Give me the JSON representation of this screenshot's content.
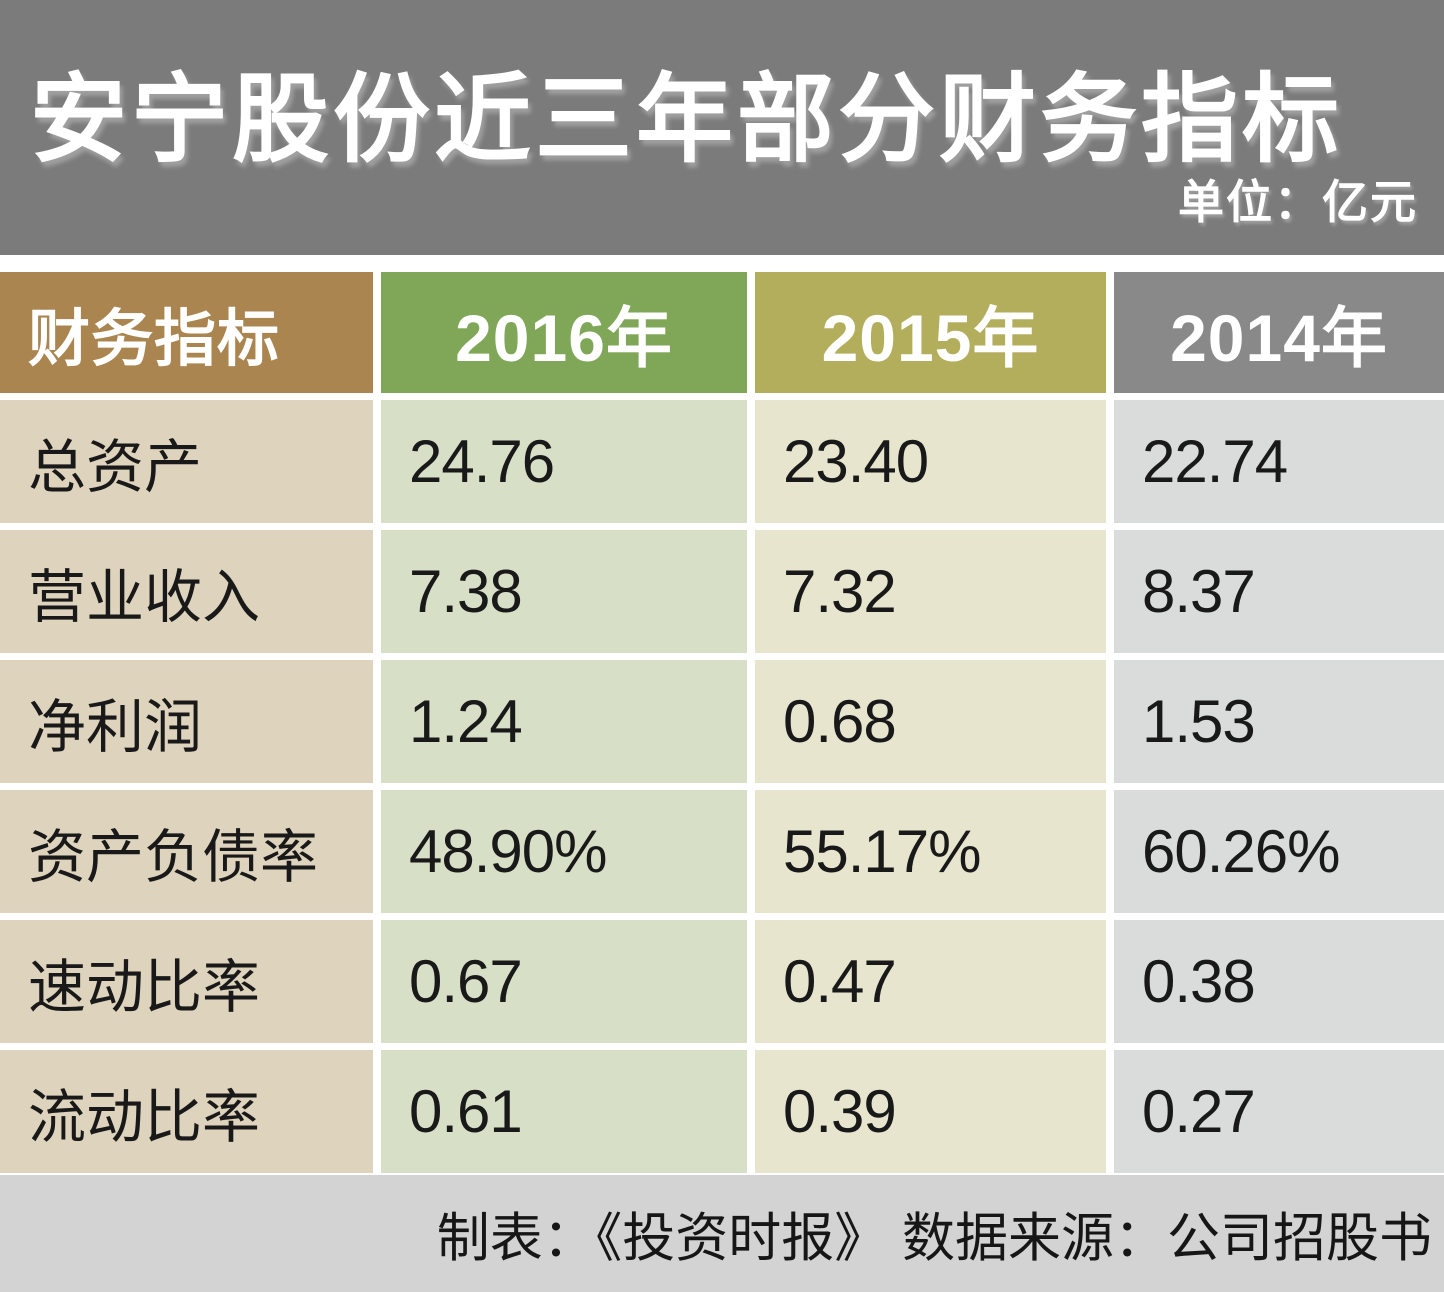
{
  "banner": {
    "title": "安宁股份近三年部分财务指标",
    "unit_label": "单位：亿元"
  },
  "table": {
    "header": [
      "财务指标",
      "2016年",
      "2015年",
      "2014年"
    ],
    "rows": [
      {
        "label": "总资产",
        "values": [
          "24.76",
          "23.40",
          "22.74"
        ]
      },
      {
        "label": "营业收入",
        "values": [
          "7.38",
          "7.32",
          "8.37"
        ]
      },
      {
        "label": "净利润",
        "values": [
          "1.24",
          "0.68",
          "1.53"
        ]
      },
      {
        "label": "资产负债率",
        "values": [
          "48.90%",
          "55.17%",
          "60.26%"
        ]
      },
      {
        "label": "速动比率",
        "values": [
          "0.67",
          "0.47",
          "0.38"
        ]
      },
      {
        "label": "流动比率",
        "values": [
          "0.61",
          "0.39",
          "0.27"
        ]
      }
    ]
  },
  "footer": {
    "credit": "制表：《投资时报》  数据来源：公司招股书"
  },
  "colors": {
    "banner_bg": "#7b7b7b",
    "header_indicator": "#aa8550",
    "header_2016": "#7fa757",
    "header_2015": "#b3ae5b",
    "header_2014": "#898989",
    "body_label": "#ded3bc",
    "body_2016": "#d7dfc6",
    "body_2015": "#e7e5ce",
    "body_2014": "#dadbdb",
    "footer_bg": "#d3d3d3",
    "text_dark": "#191919",
    "text_white": "#ffffff"
  },
  "chart_data": {
    "type": "table",
    "title": "安宁股份近三年部分财务指标",
    "unit": "亿元",
    "columns": [
      "财务指标",
      "2016年",
      "2015年",
      "2014年"
    ],
    "rows": [
      [
        "总资产",
        24.76,
        23.4,
        22.74
      ],
      [
        "营业收入",
        7.38,
        7.32,
        8.37
      ],
      [
        "净利润",
        1.24,
        0.68,
        1.53
      ],
      [
        "资产负债率",
        "48.90%",
        "55.17%",
        "60.26%"
      ],
      [
        "速动比率",
        0.67,
        0.47,
        0.38
      ],
      [
        "流动比率",
        0.61,
        0.39,
        0.27
      ]
    ],
    "source": "公司招股书",
    "credit": "《投资时报》"
  }
}
